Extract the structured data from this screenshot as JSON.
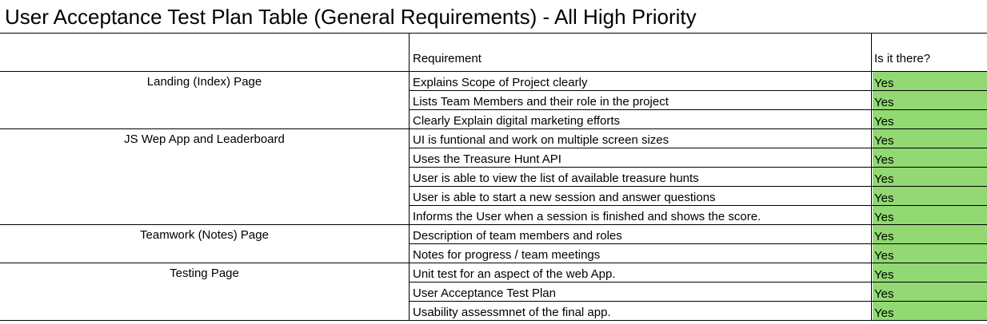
{
  "title": "User Acceptance Test Plan Table (General Requirements) - All High Priority",
  "headers": {
    "requirement": "Requirement",
    "status": "Is it there?"
  },
  "colors": {
    "yes_fill": "#92d873"
  },
  "sections": [
    {
      "name": "Landing (Index) Page",
      "rows": [
        {
          "requirement": "Explains Scope of Project clearly",
          "status": "Yes"
        },
        {
          "requirement": "Lists Team Members and their role in the project",
          "status": "Yes"
        },
        {
          "requirement": "Clearly Explain digital marketing efforts",
          "status": "Yes"
        }
      ]
    },
    {
      "name": "JS Wep App and Leaderboard",
      "rows": [
        {
          "requirement": "UI is funtional and work on multiple screen sizes",
          "status": "Yes"
        },
        {
          "requirement": "Uses the Treasure Hunt API",
          "status": "Yes"
        },
        {
          "requirement": "User is able to view the list of available treasure hunts",
          "status": "Yes"
        },
        {
          "requirement": "User is able to start a new session and answer questions",
          "status": "Yes"
        },
        {
          "requirement": "Informs the User when a session is finished and shows the score.",
          "status": "Yes"
        }
      ]
    },
    {
      "name": "Teamwork (Notes) Page",
      "rows": [
        {
          "requirement": "Description of team members and roles",
          "status": "Yes"
        },
        {
          "requirement": "Notes for progress / team meetings",
          "status": "Yes"
        }
      ]
    },
    {
      "name": "Testing Page",
      "rows": [
        {
          "requirement": "Unit test for an aspect of the web App.",
          "status": "Yes"
        },
        {
          "requirement": "User Acceptance Test Plan",
          "status": "Yes"
        },
        {
          "requirement": "Usability assessmnet of the final app.",
          "status": "Yes"
        }
      ]
    }
  ]
}
